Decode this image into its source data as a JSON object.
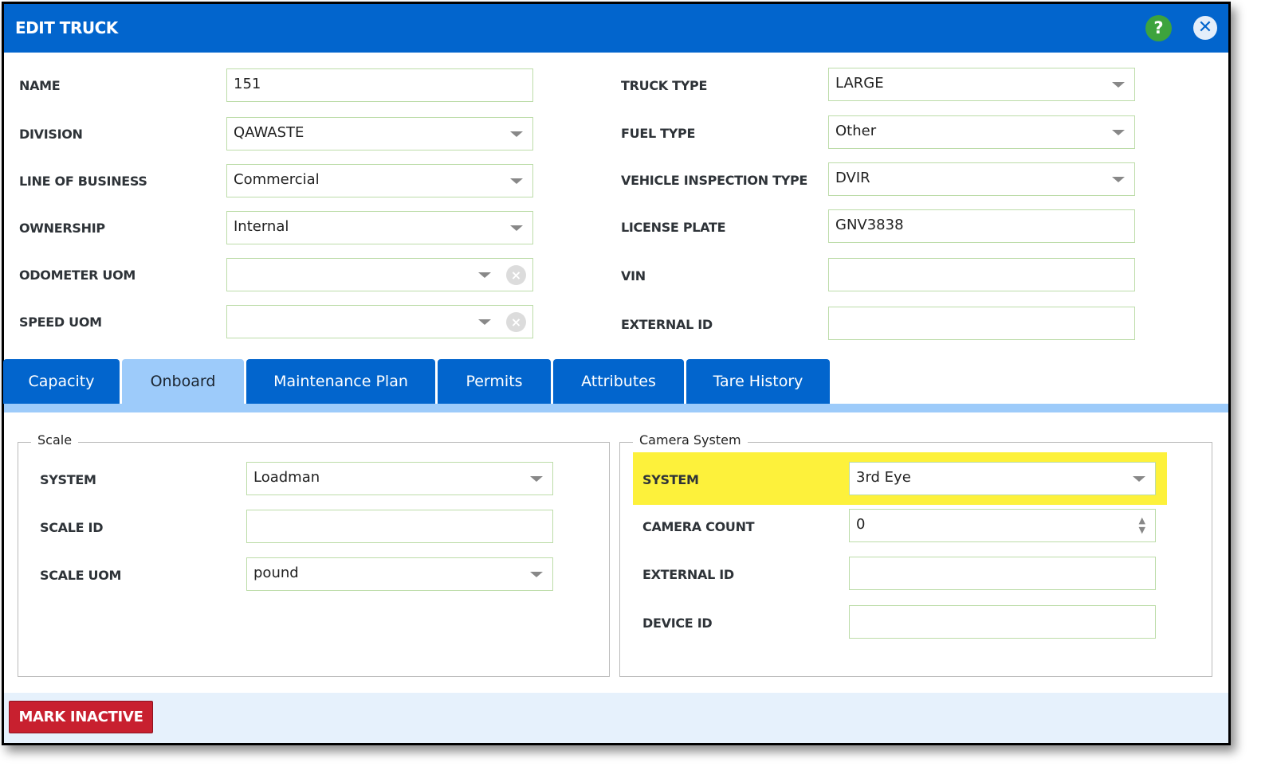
{
  "header": {
    "title": "EDIT TRUCK",
    "help_icon": "?",
    "close_icon": "✕"
  },
  "left_fields": [
    {
      "label": "NAME",
      "value": "151",
      "type": "text"
    },
    {
      "label": "DIVISION",
      "value": "QAWASTE",
      "type": "select"
    },
    {
      "label": "LINE OF BUSINESS",
      "value": "Commercial",
      "type": "select"
    },
    {
      "label": "OWNERSHIP",
      "value": "Internal",
      "type": "select"
    },
    {
      "label": "ODOMETER UOM",
      "value": "",
      "type": "select-clear"
    },
    {
      "label": "SPEED UOM",
      "value": "",
      "type": "select-clear"
    }
  ],
  "right_fields": [
    {
      "label": "TRUCK TYPE",
      "value": "LARGE",
      "type": "select"
    },
    {
      "label": "FUEL TYPE",
      "value": "Other",
      "type": "select"
    },
    {
      "label": "VEHICLE INSPECTION TYPE",
      "value": "DVIR",
      "type": "select"
    },
    {
      "label": "LICENSE PLATE",
      "value": "GNV3838",
      "type": "text"
    },
    {
      "label": "VIN",
      "value": "",
      "type": "text"
    },
    {
      "label": "EXTERNAL ID",
      "value": "",
      "type": "text"
    }
  ],
  "tabs": [
    {
      "label": "Capacity",
      "active": false
    },
    {
      "label": "Onboard",
      "active": true
    },
    {
      "label": "Maintenance Plan",
      "active": false
    },
    {
      "label": "Permits",
      "active": false
    },
    {
      "label": "Attributes",
      "active": false
    },
    {
      "label": "Tare History",
      "active": false
    }
  ],
  "scale": {
    "legend": "Scale",
    "fields": [
      {
        "label": "SYSTEM",
        "value": "Loadman",
        "type": "select"
      },
      {
        "label": "SCALE ID",
        "value": "",
        "type": "text"
      },
      {
        "label": "SCALE UOM",
        "value": "pound",
        "type": "select"
      }
    ]
  },
  "camera": {
    "legend": "Camera System",
    "highlight_color": "#fdf13b",
    "fields": [
      {
        "label": "SYSTEM",
        "value": "3rd Eye",
        "type": "select"
      },
      {
        "label": "CAMERA COUNT",
        "value": "0",
        "type": "number"
      },
      {
        "label": "EXTERNAL ID",
        "value": "",
        "type": "text"
      },
      {
        "label": "DEVICE ID",
        "value": "",
        "type": "text"
      }
    ]
  },
  "footer": {
    "mark_inactive_label": "MARK INACTIVE"
  },
  "colors": {
    "header": "#0265cd",
    "tab_active": "#9dcbfa",
    "danger": "#c8202f",
    "help": "#3da33d"
  }
}
